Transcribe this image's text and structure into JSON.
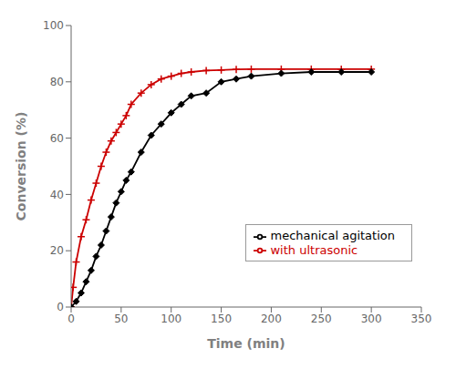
{
  "chart_data": {
    "type": "line",
    "x_label": "Time (min)",
    "y_label": "Conversion (%)",
    "xlim": [
      0,
      350
    ],
    "ylim": [
      0,
      100
    ],
    "xticks": [
      0,
      50,
      100,
      150,
      200,
      250,
      300,
      350
    ],
    "yticks": [
      0,
      20,
      40,
      60,
      80,
      100
    ],
    "grid": false,
    "legend": "lower right",
    "series": [
      {
        "name": "with ultrasonic",
        "color": "#cc0000",
        "marker": "plus",
        "x": [
          0,
          2,
          5,
          10,
          15,
          20,
          25,
          30,
          35,
          40,
          45,
          50,
          55,
          60,
          70,
          80,
          90,
          100,
          110,
          120,
          135,
          150,
          165,
          180,
          210,
          240,
          270,
          300
        ],
        "values": [
          0,
          7,
          16,
          25,
          31,
          38,
          44,
          50,
          55,
          59,
          62,
          65,
          68,
          72,
          76,
          79,
          81,
          82,
          83,
          83.5,
          84,
          84.2,
          84.4,
          84.5,
          84.5,
          84.5,
          84.5,
          84.5
        ]
      },
      {
        "name": "mechanical agitation",
        "color": "#000000",
        "marker": "diamond",
        "x": [
          0,
          5,
          10,
          15,
          20,
          25,
          30,
          35,
          40,
          45,
          50,
          55,
          60,
          70,
          80,
          90,
          100,
          110,
          120,
          135,
          150,
          165,
          180,
          210,
          240,
          270,
          300
        ],
        "values": [
          0,
          2,
          5,
          9,
          13,
          18,
          22,
          27,
          32,
          37,
          41,
          45,
          48,
          55,
          61,
          65,
          69,
          72,
          75,
          76,
          80,
          81,
          82,
          83,
          83.5,
          83.5,
          83.5
        ]
      }
    ]
  }
}
